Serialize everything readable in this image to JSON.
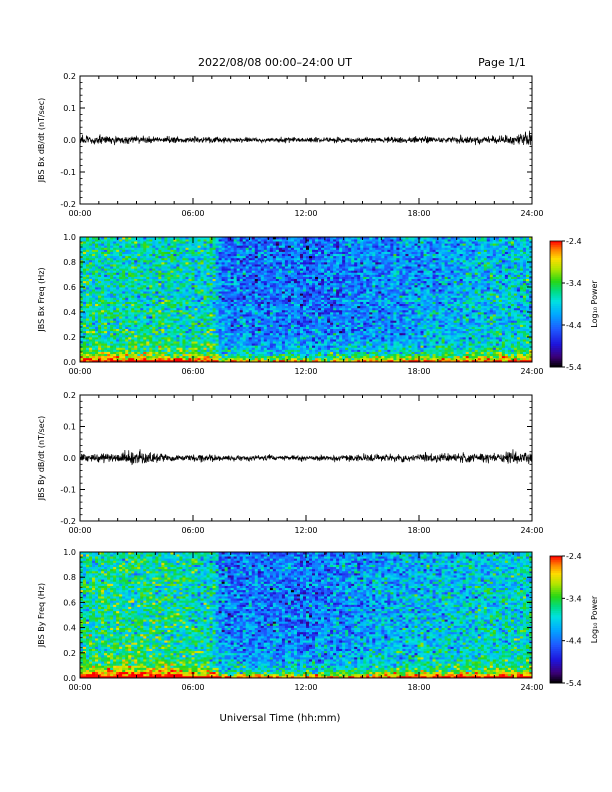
{
  "header": {
    "title": "2022/08/08  00:00–24:00 UT",
    "page": "Page 1/1"
  },
  "footer": {
    "xlabel": "Universal Time (hh:mm)"
  },
  "chart_data": [
    {
      "type": "line",
      "ylabel": "JBS Bx dB/dt (nT/sec)",
      "x_ticks": [
        "00:00",
        "06:00",
        "12:00",
        "18:00",
        "24:00"
      ],
      "y_ticks": [
        "0.2",
        "0.1",
        "0.0",
        "-0.1",
        "-0.2"
      ],
      "ylim": [
        -0.2,
        0.2
      ],
      "xlim_hours": [
        0,
        24
      ],
      "series": [
        {
          "x_hours": [
            0,
            1,
            2,
            3,
            4,
            5,
            6,
            7,
            8,
            9,
            10,
            11,
            12,
            13,
            14,
            15,
            16,
            17,
            18,
            19,
            20,
            21,
            22,
            23,
            24
          ],
          "envelope": [
            0.012,
            0.012,
            0.013,
            0.012,
            0.01,
            0.009,
            0.009,
            0.008,
            0.007,
            0.007,
            0.007,
            0.007,
            0.007,
            0.007,
            0.007,
            0.008,
            0.008,
            0.008,
            0.009,
            0.009,
            0.01,
            0.01,
            0.011,
            0.013,
            0.02
          ]
        }
      ]
    },
    {
      "type": "heatmap",
      "ylabel": "JBS Bx Freq (Hz)",
      "x_ticks": [
        "00:00",
        "06:00",
        "12:00",
        "18:00",
        "24:00"
      ],
      "y_ticks": [
        "1.0",
        "0.8",
        "0.6",
        "0.4",
        "0.2",
        "0.0"
      ],
      "ylim": [
        0.0,
        1.0
      ],
      "xlim_hours": [
        0,
        24
      ],
      "colorbar": {
        "label": "Log₁₀ Power",
        "ticks": [
          "-2.4",
          "-3.4",
          "-4.4",
          "-5.4"
        ],
        "range": [
          -5.4,
          -2.4
        ]
      },
      "profile_hours": [
        0,
        3.5,
        7.2,
        7.4,
        12,
        16,
        21,
        24
      ],
      "profile_level": [
        -3.75,
        -3.8,
        -3.85,
        -4.35,
        -4.45,
        -4.3,
        -4.05,
        -3.95
      ],
      "low_freq_boost": 1.4
    },
    {
      "type": "line",
      "ylabel": "JBS By dB/dt (nT/sec)",
      "x_ticks": [
        "00:00",
        "06:00",
        "12:00",
        "18:00",
        "24:00"
      ],
      "y_ticks": [
        "0.2",
        "0.1",
        "0.0",
        "-0.1",
        "-0.2"
      ],
      "ylim": [
        -0.2,
        0.2
      ],
      "xlim_hours": [
        0,
        24
      ],
      "series": [
        {
          "x_hours": [
            0,
            1,
            2,
            3,
            4,
            5,
            6,
            7,
            8,
            9,
            10,
            11,
            12,
            13,
            14,
            15,
            16,
            17,
            18,
            19,
            20,
            21,
            22,
            23,
            24
          ],
          "envelope": [
            0.013,
            0.014,
            0.015,
            0.02,
            0.013,
            0.011,
            0.01,
            0.009,
            0.008,
            0.008,
            0.008,
            0.008,
            0.008,
            0.008,
            0.009,
            0.011,
            0.01,
            0.01,
            0.012,
            0.012,
            0.013,
            0.013,
            0.013,
            0.02,
            0.022
          ]
        }
      ]
    },
    {
      "type": "heatmap",
      "ylabel": "JBS By Freq (Hz)",
      "x_ticks": [
        "00:00",
        "06:00",
        "12:00",
        "18:00",
        "24:00"
      ],
      "y_ticks": [
        "1.0",
        "0.8",
        "0.6",
        "0.4",
        "0.2",
        "0.0"
      ],
      "ylim": [
        0.0,
        1.0
      ],
      "xlim_hours": [
        0,
        24
      ],
      "colorbar": {
        "label": "Log₁₀ Power",
        "ticks": [
          "-2.4",
          "-3.4",
          "-4.4",
          "-5.4"
        ],
        "range": [
          -5.4,
          -2.4
        ]
      },
      "profile_hours": [
        0,
        3.5,
        7.2,
        7.4,
        12,
        16,
        21,
        24
      ],
      "profile_level": [
        -3.7,
        -3.65,
        -3.85,
        -4.35,
        -4.4,
        -4.15,
        -3.95,
        -3.85
      ],
      "low_freq_boost": 1.5
    }
  ]
}
